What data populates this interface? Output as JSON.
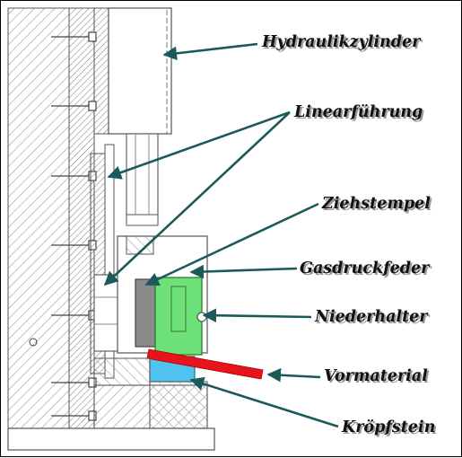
{
  "labels": {
    "hydraulikzylinder": "Hydraulikzylinder",
    "linearfuehrung": "Linearführung",
    "ziehstempel": "Ziehstempel",
    "gasdruckfeder": "Gasdruckfeder",
    "niederhalter": "Niederhalter",
    "vormaterial": "Vormaterial",
    "kroepfstein": "Kröpfstein"
  },
  "colors": {
    "arrow": "#1a5a5a",
    "niederhalter_fill": "#6ee07a",
    "ziehstempel_fill": "#8a8a8a",
    "kroepfstein_fill": "#4fc3f0",
    "vormaterial_fill": "#e8141c",
    "drawing_line": "#555555",
    "hatch": "#9a9a9a"
  }
}
